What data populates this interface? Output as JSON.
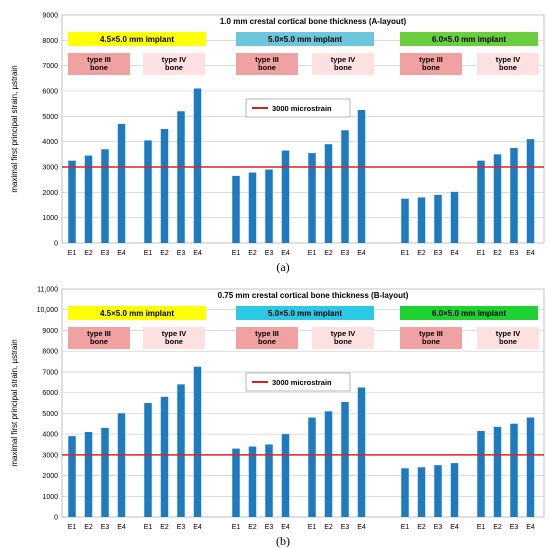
{
  "chart_data": [
    {
      "type": "bar",
      "panel_label": "(a)",
      "title": "1.0 mm crestal cortical bone thickness (A-layout)",
      "ylabel": "maximal first principal strain, µstrain",
      "xlabel": "",
      "ylim": [
        0,
        9000
      ],
      "yticks": [
        "0",
        "1000",
        "2000",
        "3000",
        "4000",
        "5000",
        "6000",
        "7000",
        "8000",
        "9000"
      ],
      "ytick_values": [
        0,
        1000,
        2000,
        3000,
        4000,
        5000,
        6000,
        7000,
        8000,
        9000
      ],
      "categories": [
        "E1",
        "E2",
        "E3",
        "E4",
        "E1",
        "E2",
        "E3",
        "E4",
        "E1",
        "E2",
        "E3",
        "E4",
        "E1",
        "E2",
        "E3",
        "E4",
        "E1",
        "E2",
        "E3",
        "E4",
        "E1",
        "E2",
        "E3",
        "E4"
      ],
      "values": [
        3250,
        3450,
        3700,
        4700,
        4050,
        4500,
        5200,
        6100,
        2650,
        2780,
        2900,
        3650,
        3550,
        3900,
        4450,
        5250,
        1750,
        1800,
        1900,
        2020,
        3250,
        3500,
        3750,
        4100
      ],
      "bar_color": "#1f7bbf",
      "grid": true,
      "reference_line": {
        "value": 3000,
        "color": "#e02020",
        "label": "3000 microstrain"
      },
      "groups": [
        {
          "label": "4.5×5.0 mm implant",
          "color": "#ffff00"
        },
        {
          "label": "5.0×5.0 mm implant",
          "color": "#6cc7dd"
        },
        {
          "label": "6.0×5.0 mm implant",
          "color": "#6acd3c"
        }
      ],
      "subgroups": [
        {
          "label": "type III\nbone",
          "color": "#f0a2a2"
        },
        {
          "label": "type IV\nbone",
          "color": "#fde0e0"
        }
      ]
    },
    {
      "type": "bar",
      "panel_label": "(b)",
      "title": "0.75 mm crestal cortical bone thickness (B-layout)",
      "ylabel": "maximal first principal strain, µstrain",
      "xlabel": "",
      "ylim": [
        0,
        11000
      ],
      "yticks": [
        "0",
        "1000",
        "2000",
        "3000",
        "4000",
        "5000",
        "6000",
        "7000",
        "8000",
        "9000",
        "10,000",
        "11,000"
      ],
      "ytick_values": [
        0,
        1000,
        2000,
        3000,
        4000,
        5000,
        6000,
        7000,
        8000,
        9000,
        10000,
        11000
      ],
      "categories": [
        "E1",
        "E2",
        "E3",
        "E4",
        "E1",
        "E2",
        "E3",
        "E4",
        "E1",
        "E2",
        "E3",
        "E4",
        "E1",
        "E2",
        "E3",
        "E4",
        "E1",
        "E2",
        "E3",
        "E4",
        "E1",
        "E2",
        "E3",
        "E4"
      ],
      "values": [
        3900,
        4100,
        4300,
        5000,
        5500,
        5800,
        6400,
        7250,
        3300,
        3400,
        3500,
        4000,
        4800,
        5100,
        5550,
        6250,
        2350,
        2400,
        2500,
        2600,
        4150,
        4350,
        4500,
        4800
      ],
      "bar_color": "#1f7bbf",
      "grid": true,
      "reference_line": {
        "value": 3000,
        "color": "#e02020",
        "label": "3000 microstrain"
      },
      "groups": [
        {
          "label": "4.5×5.0 mm implant",
          "color": "#ffff00"
        },
        {
          "label": "5.0×5.0 mm implant",
          "color": "#2cc9e6"
        },
        {
          "label": "6.0×5.0 mm implant",
          "color": "#1fd232"
        }
      ],
      "subgroups": [
        {
          "label": "type III\nbone",
          "color": "#f0a2a2"
        },
        {
          "label": "type IV\nbone",
          "color": "#fde0e0"
        }
      ]
    }
  ]
}
